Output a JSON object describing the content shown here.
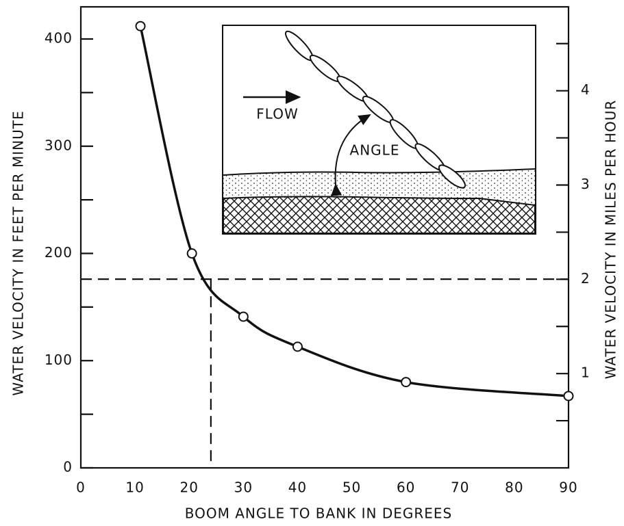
{
  "chart_data": {
    "type": "line",
    "x_label": "BOOM ANGLE TO BANK IN DEGREES",
    "y_label": "WATER VELOCITY IN FEET PER MINUTE",
    "y2_label": "WATER VELOCITY IN MILES PER HOUR",
    "x": [
      11,
      20.5,
      30,
      40,
      60,
      90
    ],
    "series": [
      {
        "values": [
          412,
          200,
          141,
          113,
          80,
          67
        ],
        "color": "#111111"
      }
    ],
    "xlim": [
      0,
      90
    ],
    "xticks": [
      0,
      10,
      20,
      30,
      40,
      50,
      60,
      70,
      80,
      90
    ],
    "ylim": [
      0,
      430
    ],
    "yticks": [
      0,
      100,
      200,
      300,
      400
    ],
    "yminor": [
      50,
      150,
      250,
      350
    ],
    "y2lim": [
      0,
      4.89
    ],
    "y2ticks": [
      1,
      2,
      3,
      4
    ],
    "y2minor": [
      0.5,
      1.5,
      2.5,
      3.5,
      4.5
    ],
    "reference": {
      "y": 176,
      "x": 24
    },
    "inset": {
      "flow": "FLOW",
      "angle": "ANGLE"
    }
  }
}
